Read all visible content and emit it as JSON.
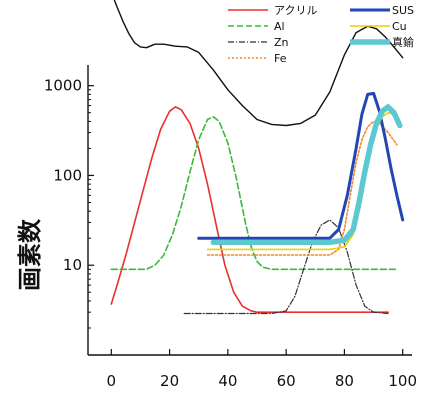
{
  "chart_data": {
    "type": "line",
    "xlabel": "",
    "ylabel": "画素数",
    "y_scale": "log",
    "xlim": [
      -8,
      108
    ],
    "ylim": [
      1,
      9000
    ],
    "x_ticks": [
      "0",
      "20",
      "40",
      "60",
      "80",
      "100"
    ],
    "y_ticks": [
      "10",
      "100",
      "1000"
    ],
    "legend_position": "top-right",
    "series": [
      {
        "name": "アクリル",
        "color": "#e8312f",
        "style": "solid",
        "width": 1.6,
        "x": [
          0,
          2,
          5,
          8,
          11,
          14,
          17,
          20,
          22,
          24,
          27,
          30,
          33,
          36,
          39,
          42,
          45,
          48,
          50,
          55,
          60,
          70,
          80,
          90,
          95
        ],
        "y": [
          3.7,
          6,
          13,
          30,
          70,
          160,
          330,
          520,
          580,
          540,
          380,
          200,
          80,
          28,
          10,
          5,
          3.5,
          3.1,
          3,
          3,
          3,
          3,
          3,
          3,
          3
        ]
      },
      {
        "name": "Al",
        "color": "#3cb83c",
        "style": "dashed",
        "width": 1.6,
        "x": [
          0,
          5,
          10,
          12,
          15,
          18,
          21,
          24,
          27,
          30,
          33,
          35,
          37,
          40,
          43,
          46,
          48,
          50,
          52,
          55,
          60,
          70,
          80,
          90,
          98
        ],
        "y": [
          9,
          9,
          9,
          9,
          10,
          13,
          22,
          45,
          110,
          250,
          420,
          450,
          400,
          230,
          90,
          30,
          16,
          11,
          9.5,
          9,
          9,
          9,
          9,
          9,
          9
        ]
      },
      {
        "name": "Zn",
        "color": "#333333",
        "style": "dashdot",
        "width": 1.2,
        "x": [
          25,
          35,
          45,
          55,
          60,
          63,
          66,
          69,
          72,
          75,
          78,
          81,
          84,
          87,
          90,
          95
        ],
        "y": [
          2.9,
          2.9,
          2.9,
          2.9,
          3.1,
          4.5,
          9,
          18,
          28,
          32,
          26,
          14,
          6,
          3.5,
          3,
          2.9
        ]
      },
      {
        "name": "Fe",
        "color": "#f08a30",
        "style": "dotted",
        "width": 1.6,
        "x": [
          33,
          45,
          55,
          65,
          75,
          78,
          80,
          82,
          84,
          86,
          88,
          90,
          92,
          95,
          98
        ],
        "y": [
          13,
          13,
          13,
          13,
          13,
          15,
          25,
          60,
          140,
          250,
          350,
          400,
          380,
          300,
          220
        ]
      },
      {
        "name": "SUS",
        "color": "#2346b5",
        "style": "solid",
        "width": 3,
        "x": [
          30,
          40,
          50,
          60,
          70,
          75,
          78,
          81,
          84,
          86,
          88,
          90,
          92,
          94,
          96,
          98,
          100
        ],
        "y": [
          20,
          20,
          20,
          20,
          20,
          20,
          25,
          60,
          200,
          480,
          800,
          820,
          520,
          260,
          120,
          60,
          32
        ]
      },
      {
        "name": "Cu",
        "color": "#f0d000",
        "style": "solid",
        "width": 1.6,
        "x": [
          33,
          45,
          55,
          65,
          75,
          80,
          83,
          85,
          87,
          89,
          91,
          93,
          95,
          97,
          99
        ],
        "y": [
          15,
          15,
          15,
          15,
          15,
          16,
          22,
          45,
          100,
          200,
          340,
          450,
          500,
          480,
          380
        ]
      },
      {
        "name": "真鍮",
        "color": "#5cc8d0",
        "style": "solid",
        "width": 5.5,
        "x": [
          35,
          45,
          55,
          65,
          75,
          80,
          83,
          85,
          87,
          89,
          91,
          93,
          95,
          97,
          99
        ],
        "y": [
          18,
          18,
          18,
          18,
          18,
          19,
          25,
          50,
          110,
          220,
          380,
          520,
          580,
          500,
          360
        ]
      },
      {
        "name": "",
        "color": "#111111",
        "style": "solid",
        "width": 1.4,
        "x": [
          0,
          2,
          4,
          6,
          8,
          10,
          12,
          15,
          18,
          22,
          26,
          30,
          35,
          40,
          45,
          50,
          55,
          60,
          65,
          70,
          75,
          80,
          84,
          88,
          91,
          94,
          97,
          100
        ],
        "y": [
          11000,
          7500,
          5200,
          3800,
          3000,
          2700,
          2650,
          2900,
          2900,
          2750,
          2700,
          2350,
          1500,
          900,
          600,
          420,
          370,
          360,
          380,
          470,
          850,
          2200,
          3900,
          4600,
          4300,
          3500,
          2700,
          2050
        ]
      }
    ]
  }
}
